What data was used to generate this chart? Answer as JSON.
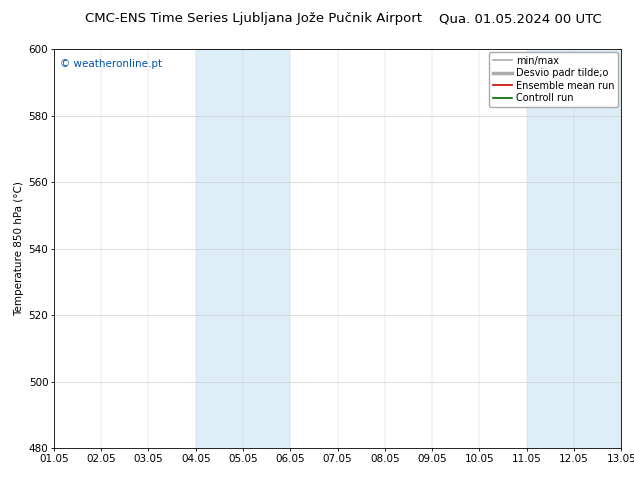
{
  "title": "CMC-ENS Time Series Ljubljana Jože Pučnik Airport",
  "title_right": "Qua. 01.05.2024 00 UTC",
  "ylabel": "Temperature 850 hPa (°C)",
  "xlabel_ticks": [
    "01.05",
    "02.05",
    "03.05",
    "04.05",
    "05.05",
    "06.05",
    "07.05",
    "08.05",
    "09.05",
    "10.05",
    "11.05",
    "12.05",
    "13.05"
  ],
  "ylim": [
    480,
    600
  ],
  "yticks": [
    480,
    500,
    520,
    540,
    560,
    580,
    600
  ],
  "xlim": [
    0,
    12
  ],
  "xtick_positions": [
    0,
    1,
    2,
    3,
    4,
    5,
    6,
    7,
    8,
    9,
    10,
    11,
    12
  ],
  "shaded_bands": [
    {
      "x_start": 3,
      "x_end": 5,
      "color": "#ddeef8"
    },
    {
      "x_start": 10,
      "x_end": 12,
      "color": "#ddeef8"
    }
  ],
  "watermark": "© weatheronline.pt",
  "watermark_color": "#0055aa",
  "legend_entries": [
    {
      "label": "min/max",
      "color": "#aaaaaa",
      "lw": 1.2
    },
    {
      "label": "Desvio padr tilde;o",
      "color": "#aaaaaa",
      "lw": 2.5
    },
    {
      "label": "Ensemble mean run",
      "color": "#cc0000",
      "lw": 1.2
    },
    {
      "label": "Controll run",
      "color": "#006600",
      "lw": 1.2
    }
  ],
  "bg_color": "#ffffff",
  "plot_bg_color": "#ffffff",
  "border_color": "#000000",
  "grid_color": "#cccccc",
  "title_fontsize": 9.5,
  "tick_fontsize": 7.5,
  "ylabel_fontsize": 7.5,
  "legend_fontsize": 7.0,
  "watermark_fontsize": 7.5
}
